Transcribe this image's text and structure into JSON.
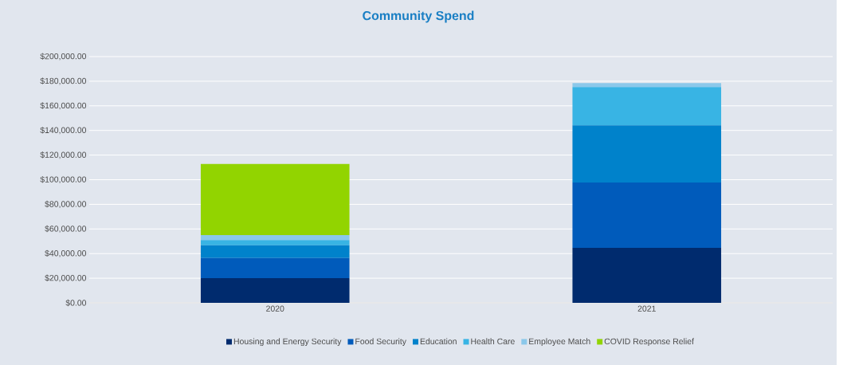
{
  "chart_data": {
    "type": "bar",
    "title": "Community Spend",
    "stacked": true,
    "categories": [
      "2020",
      "2021"
    ],
    "series": [
      {
        "name": "Housing and Energy Security",
        "color": "#002b6e",
        "values": [
          20000,
          44700
        ]
      },
      {
        "name": "Food Security",
        "color": "#005bbb",
        "values": [
          16400,
          53000
        ]
      },
      {
        "name": "Education",
        "color": "#0082cb",
        "values": [
          10400,
          46400
        ]
      },
      {
        "name": "Health Care",
        "color": "#38b4e4",
        "values": [
          4100,
          31100
        ]
      },
      {
        "name": "Employee Match",
        "color": "#8bc8ea",
        "values": [
          4100,
          3200
        ]
      },
      {
        "name": "COVID Response Relief",
        "color": "#92d400",
        "values": [
          57800,
          null
        ]
      }
    ],
    "ylim": [
      0,
      200000
    ],
    "yticks": [
      {
        "value": 0,
        "label": "$0.00"
      },
      {
        "value": 20000,
        "label": "$20,000.00"
      },
      {
        "value": 40000,
        "label": "$40,000.00"
      },
      {
        "value": 60000,
        "label": "$60,000.00"
      },
      {
        "value": 80000,
        "label": "$80,000.00"
      },
      {
        "value": 100000,
        "label": "$100,000.00"
      },
      {
        "value": 120000,
        "label": "$120,000.00"
      },
      {
        "value": 140000,
        "label": "$140,000.00"
      },
      {
        "value": 160000,
        "label": "$160,000.00"
      },
      {
        "value": 180000,
        "label": "$180,000.00"
      },
      {
        "value": 200000,
        "label": "$200,000.00"
      }
    ],
    "grid": "y",
    "legend": "bottom"
  }
}
